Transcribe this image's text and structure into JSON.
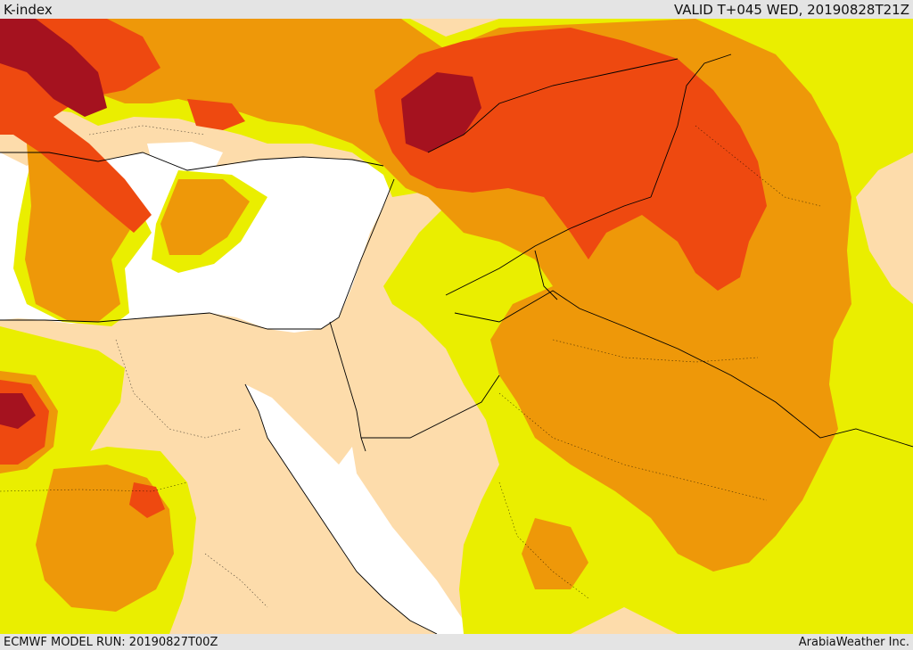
{
  "header": {
    "title": "K-index",
    "valid": "VALID T+045 WED, 20190828T21Z"
  },
  "footer": {
    "model_run": "ECMWF MODEL RUN: 20190827T00Z",
    "credit": "ArabiaWeather Inc."
  },
  "map": {
    "colors": {
      "sea": "#ffffff",
      "land_base": "#fddcab",
      "band_1": "#eaee00",
      "band_2": "#ee9809",
      "band_3": "#ee4910",
      "band_4": "#a5121f",
      "border": "#000000"
    }
  }
}
